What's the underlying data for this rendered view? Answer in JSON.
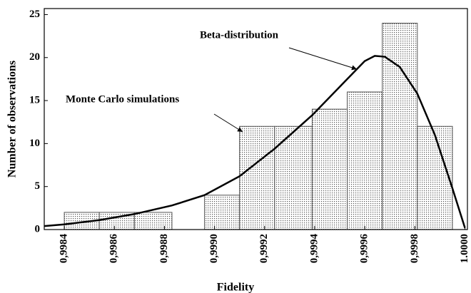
{
  "chart_data": {
    "type": "histogram",
    "x_label": "Fidelity",
    "y_label": "Number of observations",
    "bins": [
      0.9984,
      0.99854,
      0.99868,
      0.99883,
      0.99896,
      0.9991,
      0.99924,
      0.99939,
      0.99953,
      0.99967,
      0.99981,
      0.99995
    ],
    "values": [
      2,
      2,
      2,
      0,
      4,
      12,
      12,
      14,
      16,
      24,
      12
    ],
    "color": "#555555",
    "line": {
      "color": "#000000",
      "x": [
        0.99832,
        0.9984,
        0.99854,
        0.99868,
        0.99883,
        0.99896,
        0.9991,
        0.99924,
        0.99939,
        0.99953,
        0.9996,
        0.99964,
        0.99968,
        0.99974,
        0.99981,
        0.99988,
        0.99995,
        1.0
      ],
      "values": [
        0.4,
        0.6,
        1.1,
        1.8,
        2.8,
        4.0,
        6.2,
        9.4,
        13.3,
        17.5,
        19.6,
        20.2,
        20.1,
        18.9,
        15.8,
        11.0,
        4.8,
        0.2
      ]
    },
    "annotations": [
      "Beta-distribution",
      "Monte Carlo simulations"
    ],
    "xlim": [
      0.99832,
      1.00001
    ],
    "ylim": [
      0,
      25.7
    ],
    "xticks": [
      {
        "value": 0.9984,
        "label": "0,9984"
      },
      {
        "value": 0.9986,
        "label": "0,9986"
      },
      {
        "value": 0.9988,
        "label": "0,9988"
      },
      {
        "value": 0.999,
        "label": "0,9990"
      },
      {
        "value": 0.9992,
        "label": "0,9992"
      },
      {
        "value": 0.9994,
        "label": "0,9994"
      },
      {
        "value": 0.9996,
        "label": "0,9996"
      },
      {
        "value": 0.9998,
        "label": "0,9998"
      },
      {
        "value": 1.0,
        "label": "1.0000"
      }
    ],
    "yticks": [
      0,
      5,
      10,
      15,
      20,
      25
    ]
  }
}
